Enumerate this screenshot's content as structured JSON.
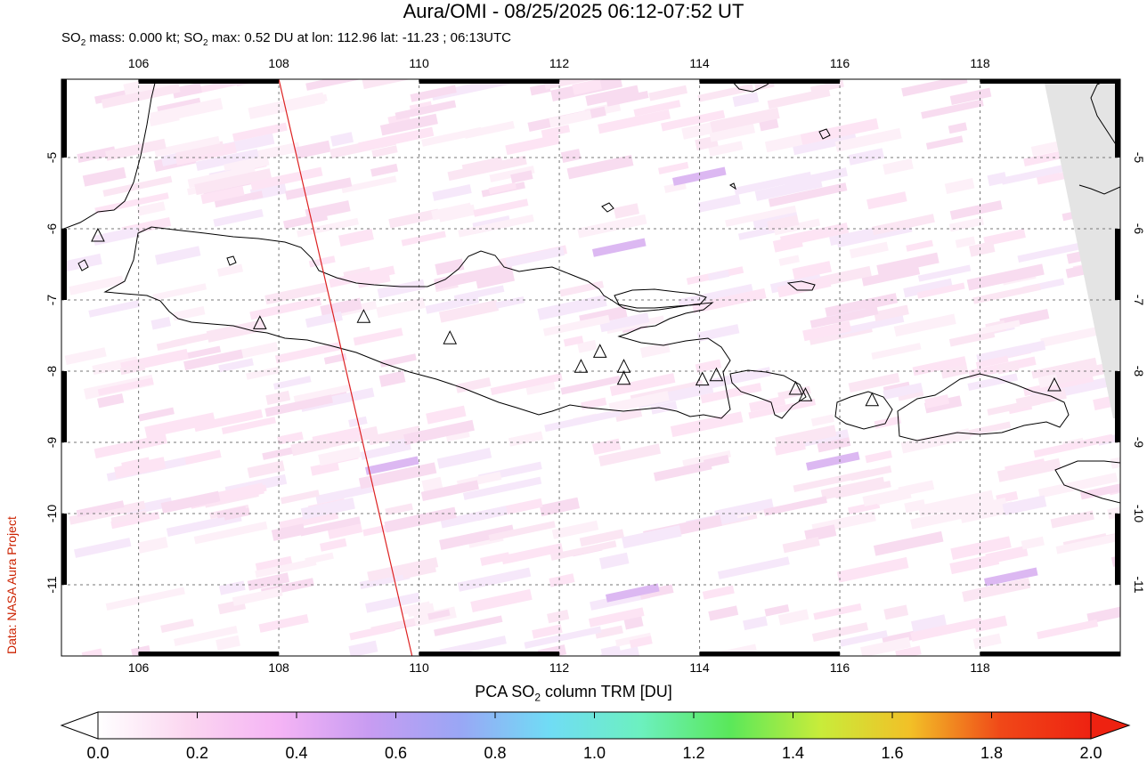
{
  "header": {
    "title": "Aura/OMI - 08/25/2025 06:12-07:52 UT",
    "subtitle_prefix": "SO",
    "subtitle_sub1": "2",
    "subtitle_mid": " mass: 0.000 kt; SO",
    "subtitle_sub2": "2",
    "subtitle_rest": " max: 0.52 DU at lon: 112.96 lat: -11.23 ; 06:13UTC"
  },
  "credit": "Data: NASA Aura Project",
  "map": {
    "lon_range": [
      104.9,
      120.0
    ],
    "lat_range": [
      -12.0,
      -3.9
    ],
    "lon_ticks": [
      106,
      108,
      110,
      112,
      114,
      116,
      118
    ],
    "lat_ticks": [
      -5,
      -6,
      -7,
      -8,
      -9,
      -10,
      -11
    ],
    "lon_tick_labels": [
      "106",
      "108",
      "110",
      "112",
      "114",
      "116",
      "118"
    ],
    "lat_tick_labels": [
      "-5",
      "-6",
      "-7",
      "-8",
      "-9",
      "-10",
      "-11"
    ],
    "grid": "dashed",
    "orbit_track": {
      "color": "#dd2222",
      "from": [
        108.0,
        -3.9
      ],
      "to": [
        109.9,
        -12.0
      ]
    },
    "volcanoes": [
      [
        105.42,
        -6.1
      ],
      [
        107.73,
        -7.33
      ],
      [
        109.21,
        -7.24
      ],
      [
        110.44,
        -7.54
      ],
      [
        112.31,
        -7.94
      ],
      [
        112.58,
        -7.73
      ],
      [
        112.92,
        -7.94
      ],
      [
        112.92,
        -8.11
      ],
      [
        114.04,
        -8.12
      ],
      [
        114.24,
        -8.06
      ],
      [
        115.37,
        -8.25
      ],
      [
        115.51,
        -8.34
      ],
      [
        116.46,
        -8.41
      ],
      [
        119.06,
        -8.2
      ]
    ],
    "no_data_color": "#e4e4e4",
    "coast_color": "#000000"
  },
  "colorbar": {
    "title_prefix": "PCA SO",
    "title_sub": "2",
    "title_suffix": " column TRM [DU]",
    "min": 0.0,
    "max": 2.0,
    "tick_labels": [
      "0.0",
      "0.2",
      "0.4",
      "0.6",
      "0.8",
      "1.0",
      "1.2",
      "1.4",
      "1.6",
      "1.8",
      "2.0"
    ],
    "stops": [
      "#ffffff",
      "#fbd6f0",
      "#f5b4f5",
      "#c89cf2",
      "#9aa6f5",
      "#70dcf5",
      "#6cf0c0",
      "#5ae85a",
      "#c8ec3a",
      "#f2c027",
      "#f04818",
      "#ee2211"
    ]
  }
}
